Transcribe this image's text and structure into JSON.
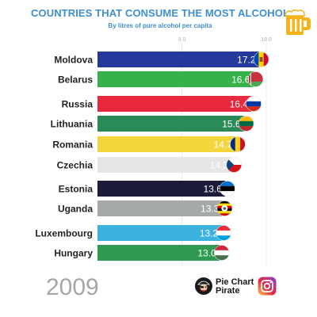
{
  "header": {
    "title": "COUNTRIES THAT CONSUME THE MOST ALCOHOL",
    "subtitle": "By litres of pure alcohol per capita"
  },
  "year": "2009",
  "brand": {
    "name": "Pie Chart Pirate"
  },
  "icons": {
    "title_icon": "beer-mug-icon",
    "brand_logo": "pirate-logo-icon",
    "social": "instagram-icon"
  },
  "chart_data": {
    "type": "bar",
    "orientation": "horizontal",
    "title": "COUNTRIES THAT CONSUME THE MOST ALCOHOL",
    "subtitle": "By litres of pure alcohol per capita",
    "xlim": [
      0,
      18
    ],
    "x_ticks": [
      "9.0",
      "18.0"
    ],
    "grid": true,
    "categories": [
      "Moldova",
      "Belarus",
      "Russia",
      "Lithuania",
      "Romania",
      "Czechia",
      "Estonia",
      "Uganda",
      "Luxembourg",
      "Hungary"
    ],
    "value_labels": [
      "17.2",
      "16.6",
      "16.4",
      "15.6",
      "14.7",
      "14.3",
      "13.6",
      "13.3",
      "13.2",
      "13.0"
    ],
    "values": [
      17.2,
      16.6,
      16.4,
      15.6,
      14.7,
      14.3,
      13.6,
      13.3,
      13.2,
      13.0
    ],
    "colors": [
      "#25389b",
      "#35b34a",
      "#e8293e",
      "#2b8b57",
      "#f2d63c",
      "#e6e6e6",
      "#1c1c3a",
      "#a5aaa7",
      "#3cb3df",
      "#2f9a52"
    ],
    "flags": [
      "moldova-flag-icon",
      "belarus-flag-icon",
      "russia-flag-icon",
      "lithuania-flag-icon",
      "romania-flag-icon",
      "czechia-flag-icon",
      "estonia-flag-icon",
      "uganda-flag-icon",
      "luxembourg-flag-icon",
      "hungary-flag-icon"
    ]
  }
}
